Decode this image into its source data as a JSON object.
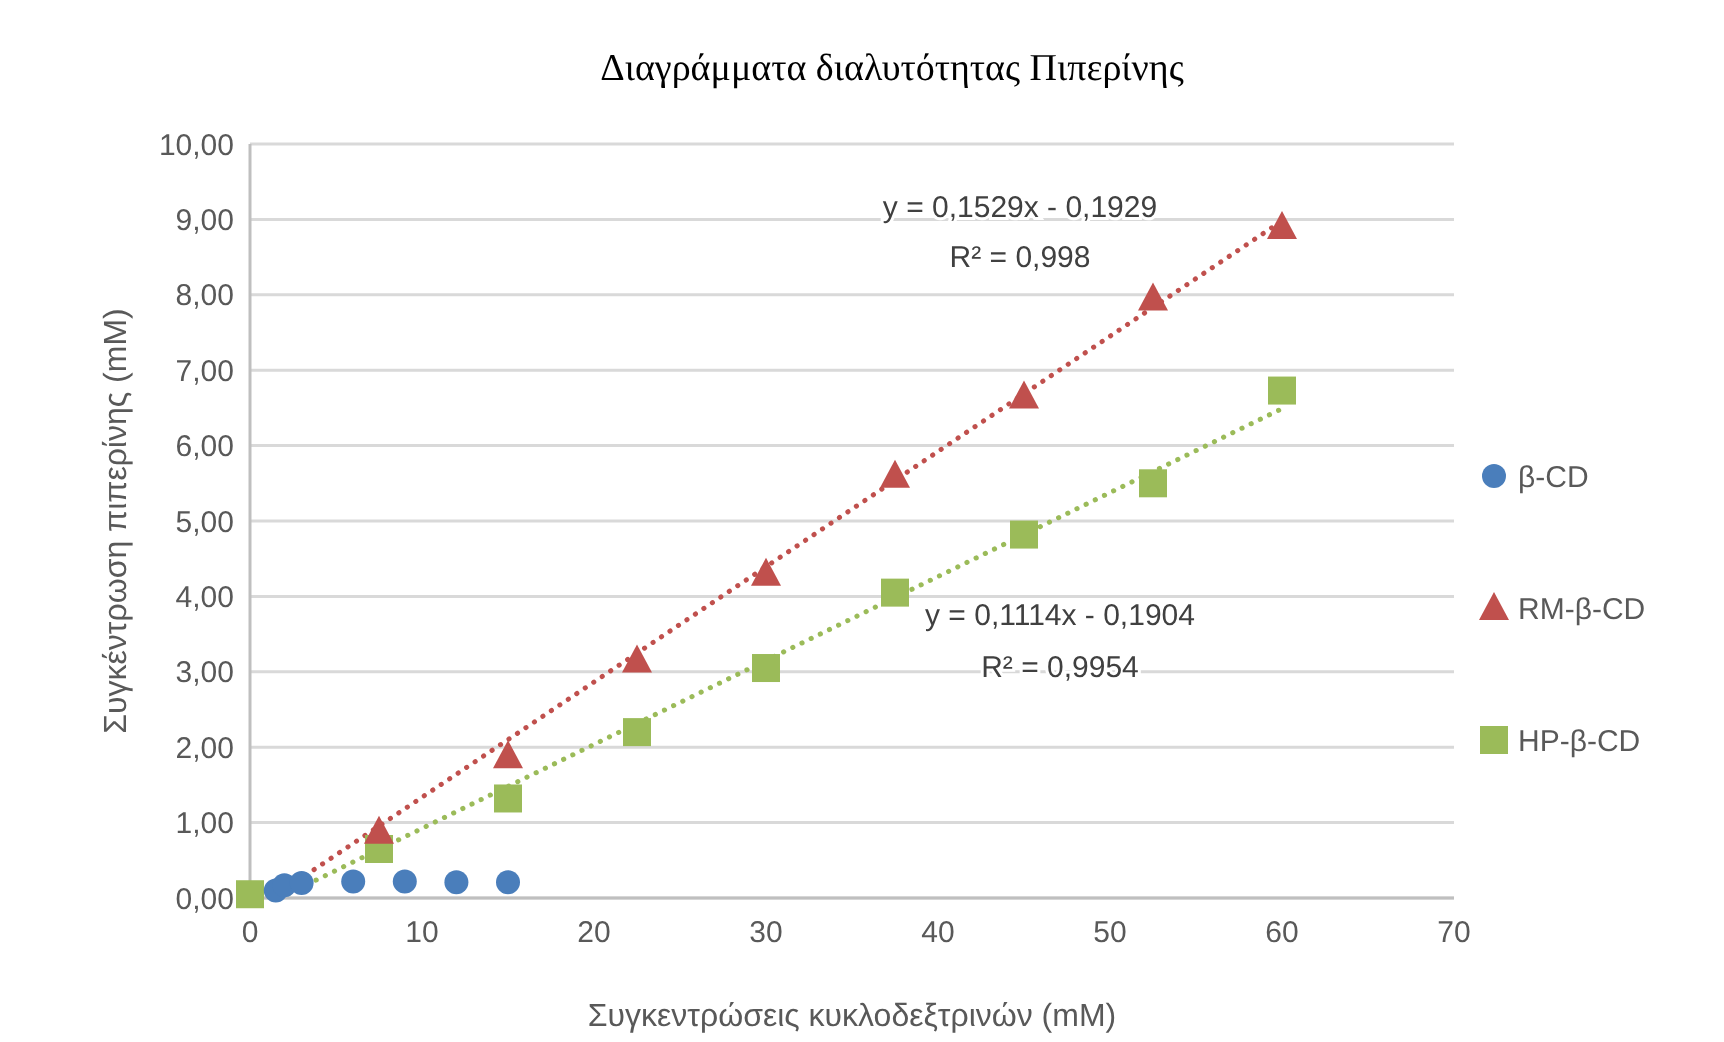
{
  "chart_data": {
    "type": "scatter",
    "title": "Διαγράμματα διαλυτότητας Πιπερίνης",
    "xlabel": "Συγκεντρώσεις κυκλοδεξτρινών (mM)",
    "ylabel": "Συγκέντρωση πιπερίνης (mM)",
    "xlim": [
      0,
      70
    ],
    "xticks": [
      0,
      10,
      20,
      30,
      40,
      50,
      60,
      70
    ],
    "ylim": [
      0,
      10
    ],
    "yticks": [
      {
        "value": 0,
        "label": "0,00"
      },
      {
        "value": 1,
        "label": "1,00"
      },
      {
        "value": 2,
        "label": "2,00"
      },
      {
        "value": 3,
        "label": "3,00"
      },
      {
        "value": 4,
        "label": "4,00"
      },
      {
        "value": 5,
        "label": "5,00"
      },
      {
        "value": 6,
        "label": "6,00"
      },
      {
        "value": 7,
        "label": "7,00"
      },
      {
        "value": 8,
        "label": "8,00"
      },
      {
        "value": 9,
        "label": "9,00"
      },
      {
        "value": 10,
        "label": "10,00"
      }
    ],
    "grid": "y",
    "legend": "right",
    "series": [
      {
        "name": "β-CD",
        "marker": "circle",
        "color": "#4a7ebb",
        "x": [
          1.5,
          2,
          3,
          6,
          9,
          12,
          15
        ],
        "values": [
          0.1,
          0.17,
          0.2,
          0.22,
          0.22,
          0.21,
          0.21
        ]
      },
      {
        "name": "RM-β-CD",
        "marker": "triangle",
        "color": "#c0504d",
        "x": [
          7.5,
          15,
          22.5,
          30,
          37.5,
          45,
          52.5,
          60
        ],
        "values": [
          0.88,
          1.88,
          3.15,
          4.3,
          5.6,
          6.65,
          7.95,
          8.9
        ]
      },
      {
        "name": "HP-β-CD",
        "marker": "square",
        "color": "#9bbb59",
        "x": [
          0,
          7.5,
          15,
          22.5,
          30,
          37.5,
          45,
          52.5,
          60
        ],
        "values": [
          0.05,
          0.65,
          1.32,
          2.2,
          3.05,
          4.05,
          4.82,
          5.5,
          6.73
        ]
      },
      {
        "type": "line",
        "line_style": "dotted",
        "color": "#c0504d",
        "x": [
          1.26,
          60
        ],
        "values": [
          0,
          8.98
        ]
      },
      {
        "type": "line",
        "line_style": "dotted",
        "color": "#9bbb59",
        "x": [
          1.71,
          60
        ],
        "values": [
          0,
          6.49
        ]
      }
    ],
    "annotations": [
      "y = 0,1529x - 0,1929",
      "R² = 0,998",
      "y = 0,1114x - 0,1904",
      "R² = 0,9954"
    ]
  }
}
